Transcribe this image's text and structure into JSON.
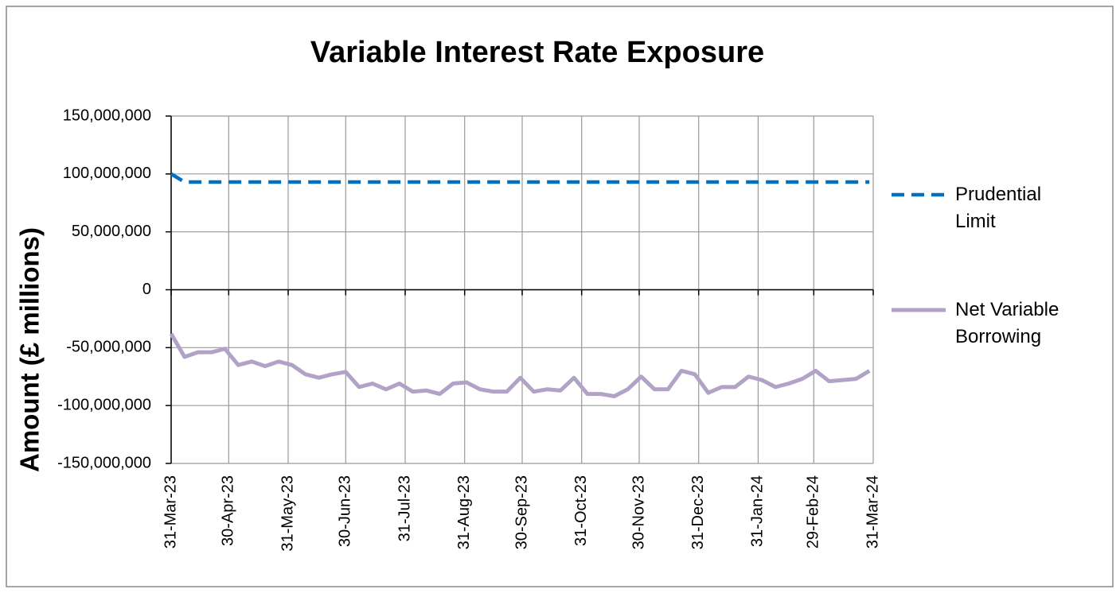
{
  "chart_data": {
    "type": "line",
    "title": "Variable Interest Rate Exposure",
    "y_label": "Amount (£ millions)",
    "x": [
      "2023-03-31",
      "2023-04-07",
      "2023-04-14",
      "2023-04-21",
      "2023-04-28",
      "2023-05-05",
      "2023-05-12",
      "2023-05-19",
      "2023-05-26",
      "2023-06-02",
      "2023-06-09",
      "2023-06-16",
      "2023-06-23",
      "2023-06-30",
      "2023-07-07",
      "2023-07-14",
      "2023-07-21",
      "2023-07-28",
      "2023-08-04",
      "2023-08-11",
      "2023-08-18",
      "2023-08-25",
      "2023-09-01",
      "2023-09-08",
      "2023-09-15",
      "2023-09-22",
      "2023-09-29",
      "2023-10-06",
      "2023-10-13",
      "2023-10-20",
      "2023-10-27",
      "2023-11-03",
      "2023-11-10",
      "2023-11-17",
      "2023-11-24",
      "2023-12-01",
      "2023-12-08",
      "2023-12-15",
      "2023-12-22",
      "2023-12-29",
      "2024-01-05",
      "2024-01-12",
      "2024-01-19",
      "2024-01-26",
      "2024-02-02",
      "2024-02-09",
      "2024-02-16",
      "2024-02-23",
      "2024-03-01",
      "2024-03-08",
      "2024-03-15",
      "2024-03-22",
      "2024-03-29"
    ],
    "series": [
      {
        "name": "Prudential Limit",
        "color": "#0070c0",
        "dashed": true,
        "values": [
          100000000,
          93000000,
          93000000,
          93000000,
          93000000,
          93000000,
          93000000,
          93000000,
          93000000,
          93000000,
          93000000,
          93000000,
          93000000,
          93000000,
          93000000,
          93000000,
          93000000,
          93000000,
          93000000,
          93000000,
          93000000,
          93000000,
          93000000,
          93000000,
          93000000,
          93000000,
          93000000,
          93000000,
          93000000,
          93000000,
          93000000,
          93000000,
          93000000,
          93000000,
          93000000,
          93000000,
          93000000,
          93000000,
          93000000,
          93000000,
          93000000,
          93000000,
          93000000,
          93000000,
          93000000,
          93000000,
          93000000,
          93000000,
          93000000,
          93000000,
          93000000,
          93000000,
          93000000
        ]
      },
      {
        "name": "Net Variable Borrowing",
        "color": "#b3a2c7",
        "dashed": false,
        "values": [
          -38000000,
          -58000000,
          -54000000,
          -54000000,
          -51000000,
          -65000000,
          -62000000,
          -66000000,
          -62000000,
          -65000000,
          -73000000,
          -76000000,
          -73000000,
          -71000000,
          -84000000,
          -81000000,
          -86000000,
          -81000000,
          -88000000,
          -87000000,
          -90000000,
          -81000000,
          -80000000,
          -86000000,
          -88000000,
          -88000000,
          -76000000,
          -88000000,
          -86000000,
          -87000000,
          -76000000,
          -90000000,
          -90000000,
          -92000000,
          -86000000,
          -75000000,
          -86000000,
          -86000000,
          -70000000,
          -73000000,
          -89000000,
          -84000000,
          -84000000,
          -75000000,
          -78000000,
          -84000000,
          -81000000,
          -77000000,
          -70000000,
          -79000000,
          -78000000,
          -77000000,
          -70000000
        ]
      }
    ],
    "xlim": [
      "2023-03-31",
      "2024-03-31"
    ],
    "xticks": [
      {
        "value": "2023-03-31",
        "label": "31-Mar-23"
      },
      {
        "value": "2023-04-30",
        "label": "30-Apr-23"
      },
      {
        "value": "2023-05-31",
        "label": "31-May-23"
      },
      {
        "value": "2023-06-30",
        "label": "30-Jun-23"
      },
      {
        "value": "2023-07-31",
        "label": "31-Jul-23"
      },
      {
        "value": "2023-08-31",
        "label": "31-Aug-23"
      },
      {
        "value": "2023-09-30",
        "label": "30-Sep-23"
      },
      {
        "value": "2023-10-31",
        "label": "31-Oct-23"
      },
      {
        "value": "2023-11-30",
        "label": "30-Nov-23"
      },
      {
        "value": "2023-12-31",
        "label": "31-Dec-23"
      },
      {
        "value": "2024-01-31",
        "label": "31-Jan-24"
      },
      {
        "value": "2024-02-29",
        "label": "29-Feb-24"
      },
      {
        "value": "2024-03-31",
        "label": "31-Mar-24"
      }
    ],
    "ylim": [
      -150000000,
      150000000
    ],
    "yticks": [
      {
        "value": -150000000,
        "label": "-150,000,000"
      },
      {
        "value": -100000000,
        "label": "-100,000,000"
      },
      {
        "value": -50000000,
        "label": "-50,000,000"
      },
      0,
      {
        "value": 50000000,
        "label": "50,000,000"
      },
      {
        "value": 100000000,
        "label": "100,000,000"
      },
      {
        "value": 150000000,
        "label": "150,000,000"
      }
    ],
    "grid": true,
    "legend": "right"
  }
}
